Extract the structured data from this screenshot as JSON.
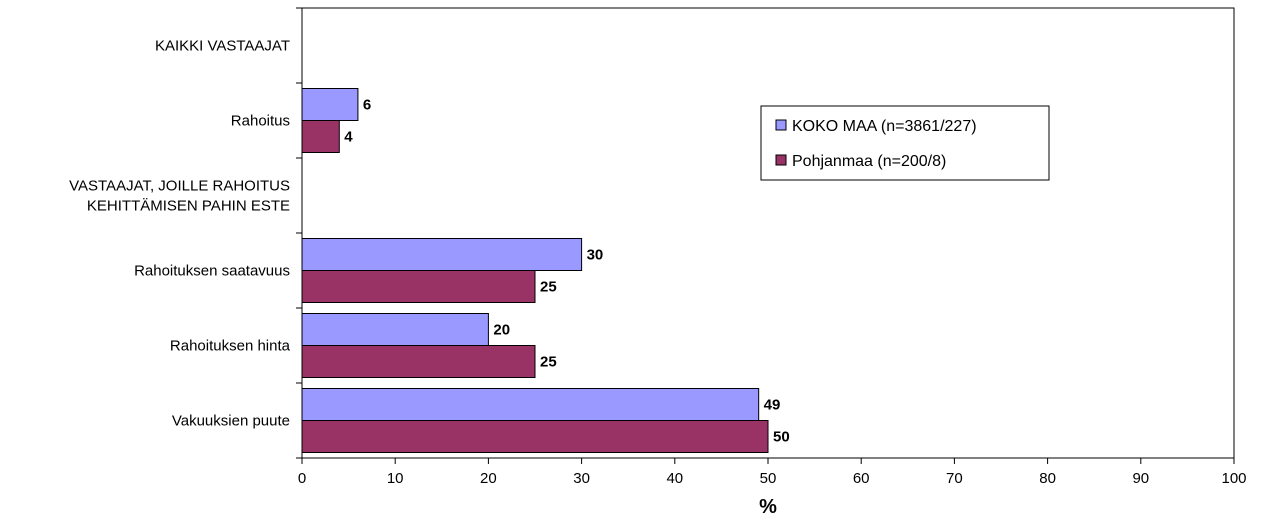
{
  "chart_data": {
    "type": "bar",
    "orientation": "horizontal",
    "title": "",
    "xlabel": "%",
    "ylabel": "",
    "xlim": [
      0,
      100
    ],
    "x_ticks": [
      "0",
      "10",
      "20",
      "30",
      "40",
      "50",
      "60",
      "70",
      "80",
      "90",
      "100"
    ],
    "grid": false,
    "legend_position": "top-right",
    "categories": [
      "KAIKKI VASTAAJAT",
      "Rahoitus",
      "VASTAAJAT, JOILLE RAHOITUS KEHITTÄMISEN PAHIN ESTE",
      "Rahoituksen saatavuus",
      "Rahoituksen hinta",
      "Vakuuksien puute"
    ],
    "category_lines": [
      [
        "KAIKKI VASTAAJAT"
      ],
      [
        "Rahoitus"
      ],
      [
        "VASTAAJAT, JOILLE RAHOITUS",
        "KEHITTÄMISEN PAHIN ESTE"
      ],
      [
        "Rahoituksen saatavuus"
      ],
      [
        "Rahoituksen hinta"
      ],
      [
        "Vakuuksien puute"
      ]
    ],
    "series": [
      {
        "name": "KOKO MAA (n=3861/227)",
        "color": "#9999ff",
        "values": [
          null,
          6,
          null,
          30,
          20,
          49
        ]
      },
      {
        "name": "Pohjanmaa (n=200/8)",
        "color": "#993366",
        "values": [
          null,
          4,
          null,
          25,
          25,
          50
        ]
      }
    ]
  }
}
